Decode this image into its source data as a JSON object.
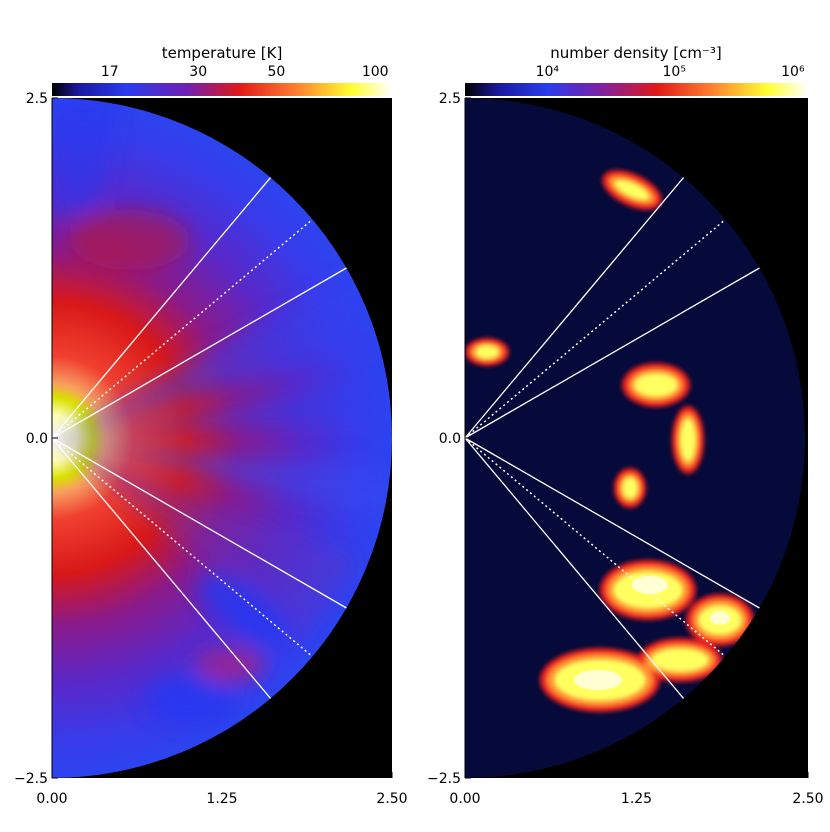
{
  "chart_data": [
    {
      "type": "heatmap",
      "colorbar": {
        "title": "temperature [K]",
        "ticks": [
          "17",
          "30",
          "50",
          "100"
        ],
        "scale": "linear",
        "range": [
          0,
          100
        ]
      },
      "x_ticks": [
        "0.00",
        "1.25",
        "2.50"
      ],
      "y_ticks": [
        "2.5",
        "0.0",
        "−2.5"
      ],
      "xlim": [
        0,
        2.5
      ],
      "ylim": [
        -2.5,
        2.5
      ],
      "domain": "half-disk, radius 2.5",
      "cone_lines_angle_deg": [
        30,
        40,
        50,
        -30,
        -40,
        -50
      ],
      "colors": {
        "hot": "#ffffe0",
        "warm": "#e01818",
        "cool": "#2838f0",
        "background": "#000000"
      }
    },
    {
      "type": "heatmap",
      "colorbar": {
        "title": "number density [cm⁻³]",
        "ticks": [
          "10⁴",
          "10⁵",
          "10⁶"
        ],
        "scale": "log",
        "range_exponent": [
          3,
          6
        ]
      },
      "x_ticks": [
        "0.00",
        "1.25",
        "2.50"
      ],
      "y_ticks": [
        "2.5",
        "0.0",
        "−2.5"
      ],
      "xlim": [
        0,
        2.5
      ],
      "ylim": [
        -2.5,
        2.5
      ],
      "domain": "half-disk, radius 2.5",
      "cone_lines_angle_deg": [
        30,
        40,
        50,
        -30,
        -40,
        -50
      ],
      "colors": {
        "clump": "#ffff60",
        "edge": "#e82020",
        "background": "#050a3a"
      }
    }
  ]
}
